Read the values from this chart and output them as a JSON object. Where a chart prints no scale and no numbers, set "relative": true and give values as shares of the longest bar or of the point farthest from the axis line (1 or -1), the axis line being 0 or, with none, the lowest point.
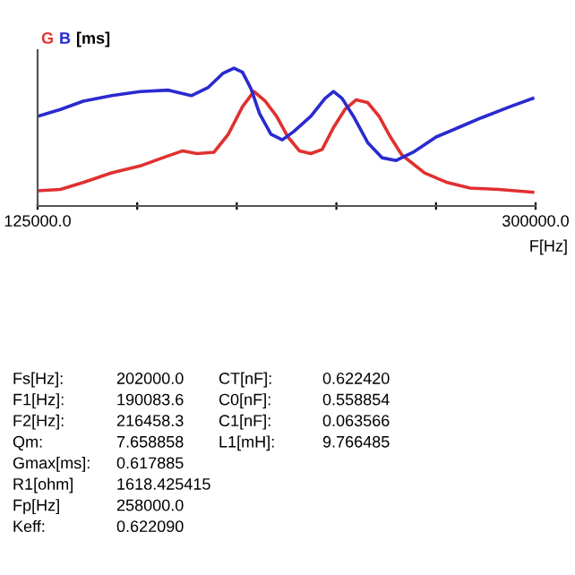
{
  "chart_data": {
    "type": "line",
    "relative": true,
    "ylabel": "[ms]",
    "xlabel": "F[Hz]",
    "xlim": [
      125000,
      300000
    ],
    "xticks": [
      {
        "value": 125000,
        "label": "125000.0"
      },
      {
        "value": 160000,
        "label": null
      },
      {
        "value": 195000,
        "label": null
      },
      {
        "value": 230000,
        "label": null
      },
      {
        "value": 265000,
        "label": null
      },
      {
        "value": 300000,
        "label": "300000.0"
      }
    ],
    "grid": false,
    "legend": false,
    "marker": "none",
    "line_style": "solid",
    "series": [
      {
        "name": "G",
        "color": "#e03030",
        "x": [
          125000,
          133000,
          141000,
          151000,
          161000,
          169000,
          176000,
          181000,
          187000,
          192000,
          197000,
          201000,
          205000,
          209000,
          213000,
          217000,
          221000,
          225000,
          229000,
          233000,
          237000,
          241000,
          245000,
          249000,
          253000,
          261000,
          269000,
          277000,
          287000,
          299000
        ],
        "values": [
          0.11,
          0.12,
          0.17,
          0.24,
          0.29,
          0.35,
          0.4,
          0.38,
          0.39,
          0.52,
          0.72,
          0.83,
          0.76,
          0.65,
          0.5,
          0.4,
          0.38,
          0.41,
          0.57,
          0.7,
          0.77,
          0.75,
          0.65,
          0.5,
          0.37,
          0.24,
          0.17,
          0.13,
          0.12,
          0.1
        ]
      },
      {
        "name": "B",
        "color": "#2a2ad0",
        "x": [
          125000,
          133000,
          141000,
          151000,
          161000,
          171000,
          179000,
          185000,
          190000,
          194000,
          197000,
          200000,
          203000,
          207000,
          211000,
          215000,
          221000,
          226000,
          229000,
          232000,
          236000,
          241000,
          246000,
          251000,
          257000,
          265000,
          273000,
          281000,
          291000,
          299000
        ],
        "values": [
          0.65,
          0.7,
          0.76,
          0.8,
          0.83,
          0.84,
          0.8,
          0.86,
          0.96,
          1.0,
          0.97,
          0.85,
          0.67,
          0.52,
          0.48,
          0.54,
          0.65,
          0.78,
          0.83,
          0.78,
          0.65,
          0.46,
          0.35,
          0.33,
          0.39,
          0.5,
          0.57,
          0.64,
          0.72,
          0.78
        ]
      }
    ],
    "annotations": [
      "Fs[Hz]:",
      "202000.0",
      "F1[Hz]:",
      "190083.6",
      "F2[Hz]:",
      "216458.3",
      "Qm:",
      "7.658858",
      "Gmax[ms]:",
      "0.617885",
      "R1[ohm]",
      "1618.425415",
      "Fp[Hz]",
      "258000.0",
      "Keff:",
      "0.622090",
      "CT[nF]:",
      "0.622420",
      "C0[nF]:",
      "0.558854",
      "C1[nF]:",
      "0.063566",
      "L1[mH]:",
      "9.766485"
    ]
  }
}
